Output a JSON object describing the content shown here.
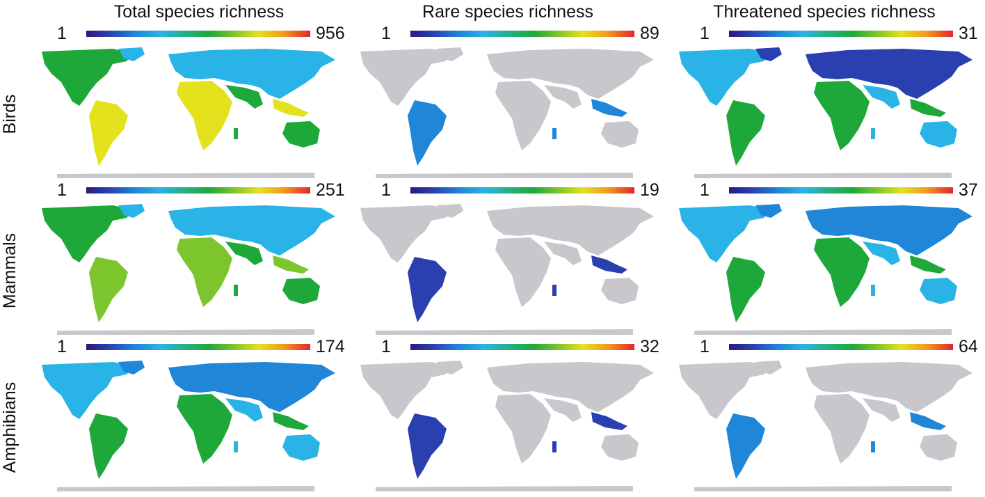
{
  "figure": {
    "columns": [
      "Total species richness",
      "Rare species richness",
      "Threatened species richness"
    ],
    "rows": [
      "Birds",
      "Mammals",
      "Amphibians"
    ],
    "legend_min_label": "1",
    "legend_max_labels": [
      [
        "956",
        "89",
        "31"
      ],
      [
        "251",
        "19",
        "37"
      ],
      [
        "174",
        "32",
        "64"
      ]
    ],
    "colors": {
      "no_data": "#c7c7cc",
      "scale_low": "#2b1a7a",
      "scale_mid": "#1ea83a",
      "scale_high": "#e0262b"
    },
    "panel_intensity": [
      [
        0.55,
        0.15,
        0.3
      ],
      [
        0.5,
        0.1,
        0.35
      ],
      [
        0.35,
        0.08,
        0.12
      ]
    ]
  }
}
